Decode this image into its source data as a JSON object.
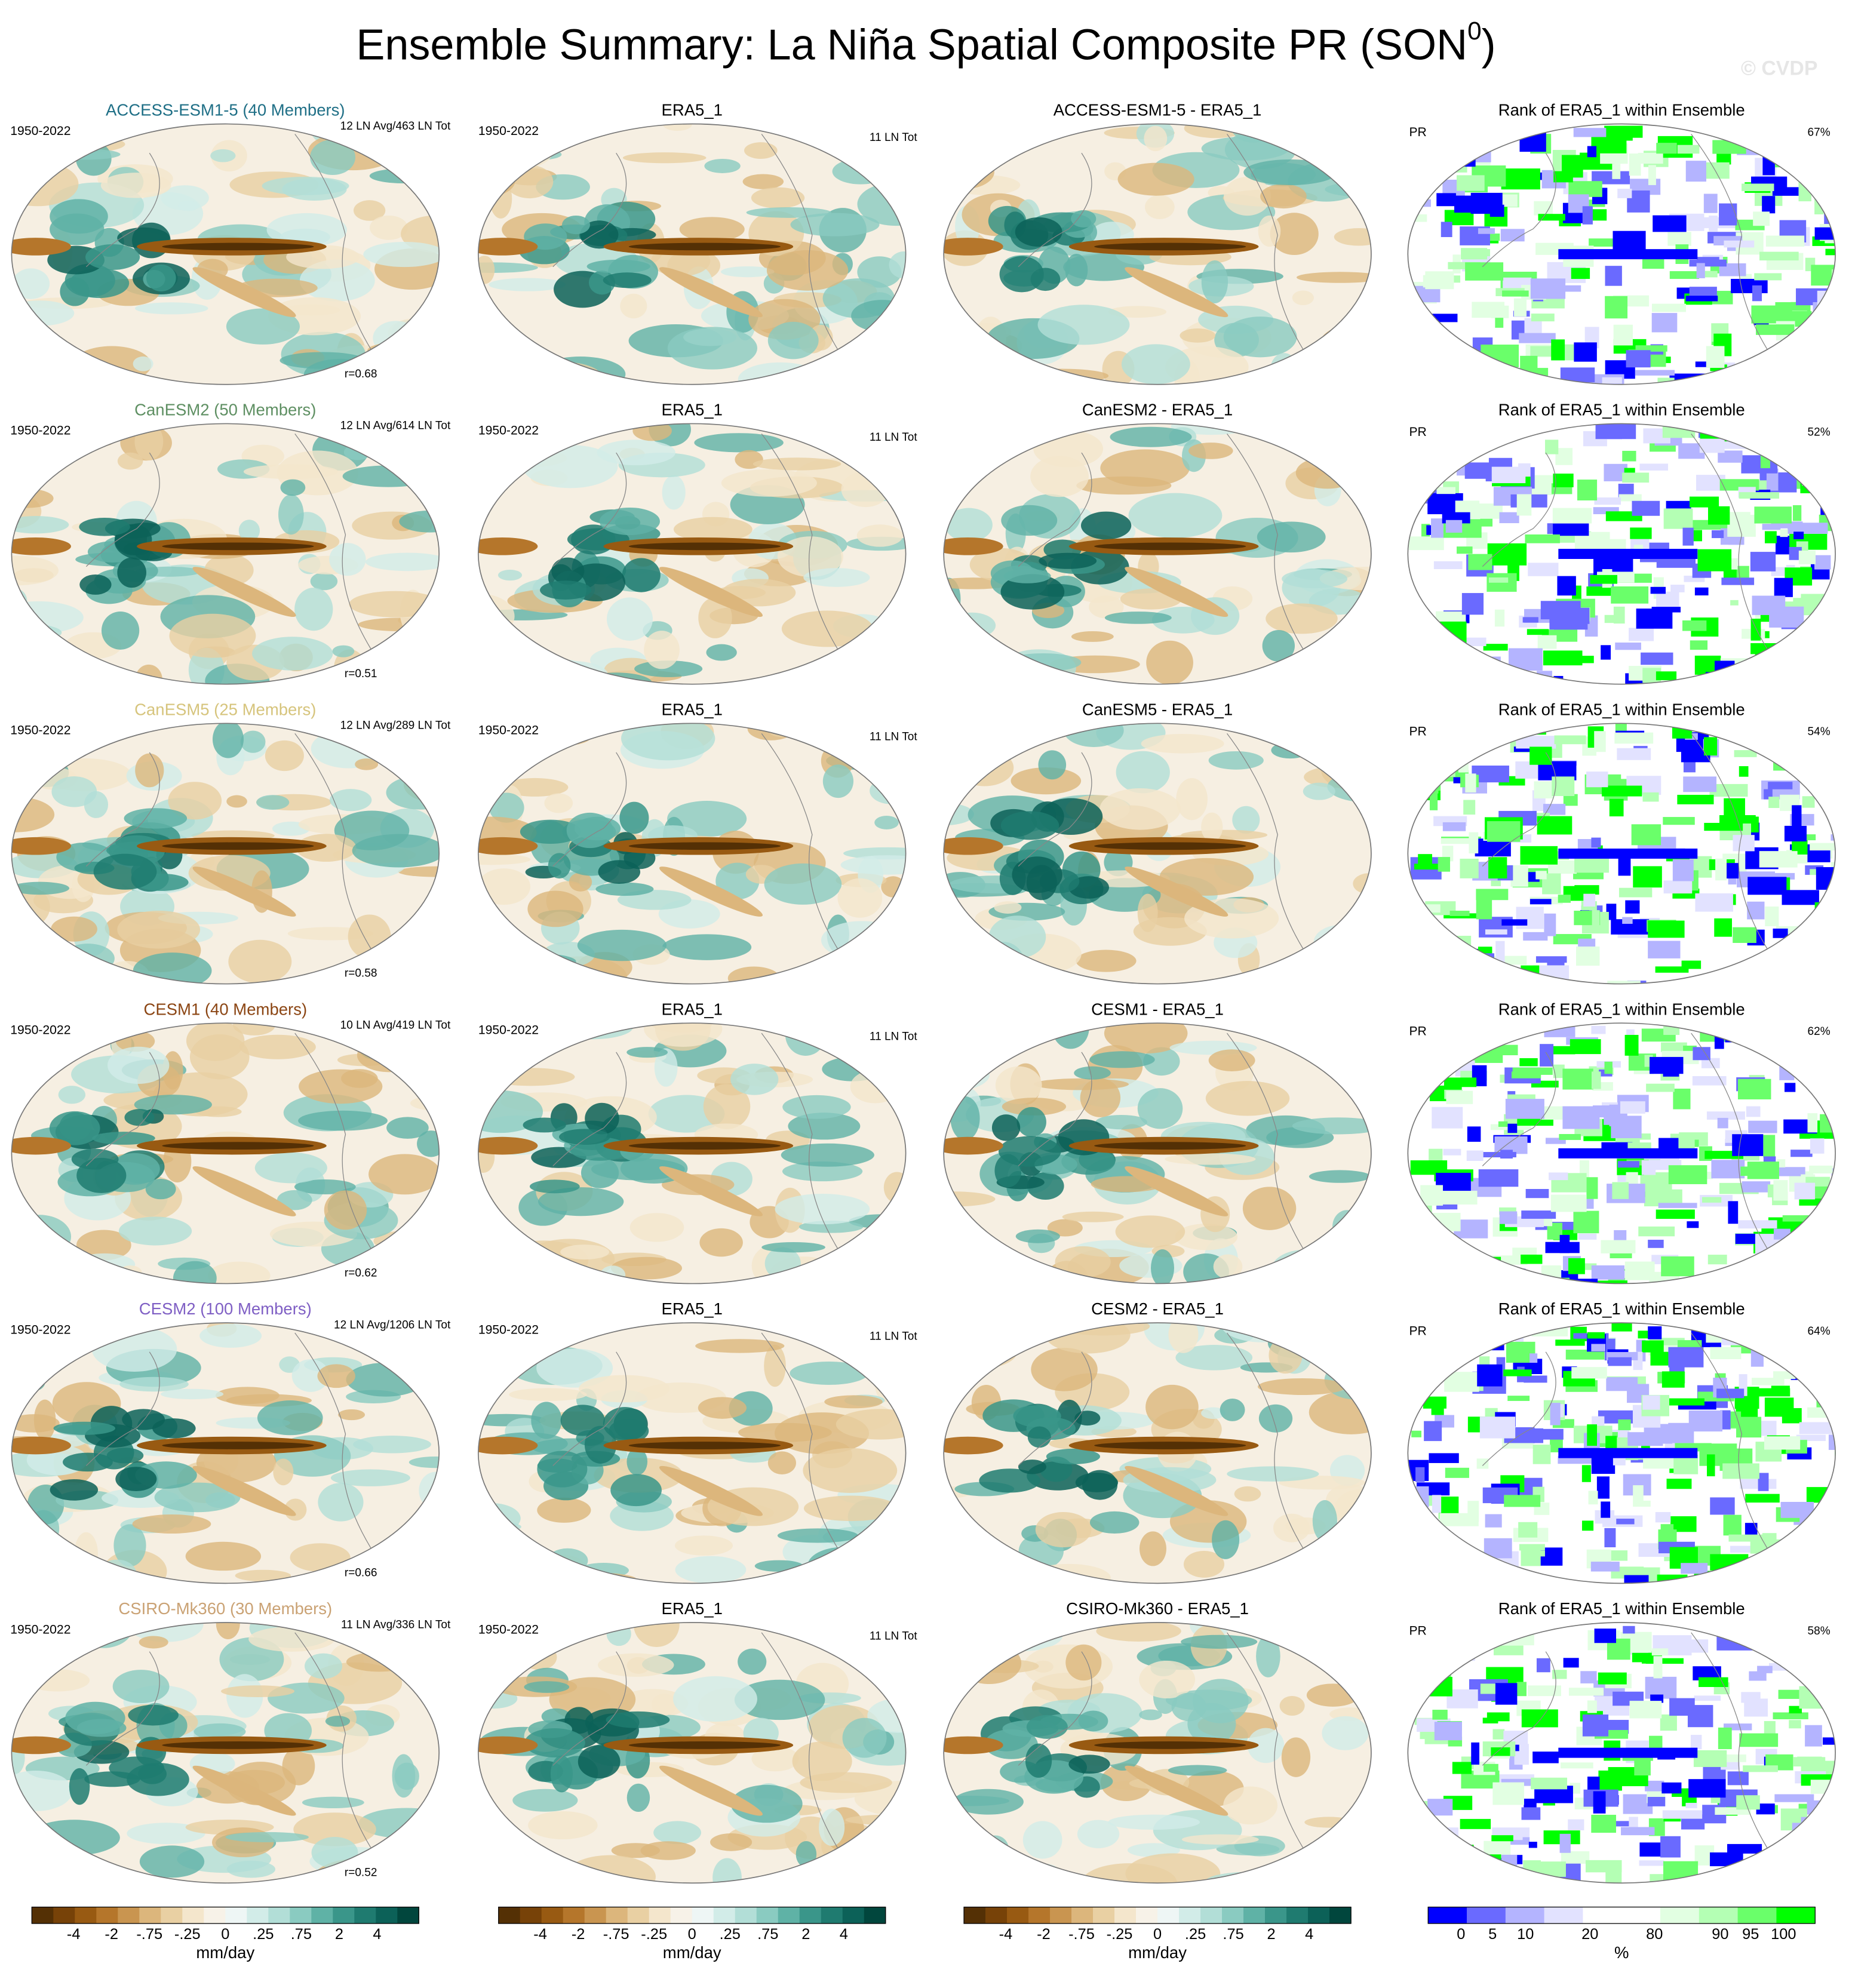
{
  "title": {
    "main": "Ensemble Summary: La Niña Spatial Composite PR (SON",
    "superscript": "0",
    "end": ")"
  },
  "watermark": "© CVDP",
  "rows": [
    {
      "model": {
        "title": "ACCESS-ESM1-5 (40 Members)",
        "color": "#1f6f86",
        "period": "1950-2022",
        "counts": "12 LN Avg/463 LN Tot",
        "correlation": "r=0.68"
      },
      "observation": {
        "title": "ERA5_1",
        "period": "1950-2022",
        "counts": "11 LN Tot"
      },
      "difference": {
        "title": "ACCESS-ESM1-5 - ERA5_1"
      },
      "rank": {
        "title": "Rank of ERA5_1 within Ensemble",
        "variable": "PR",
        "percent": "67%"
      }
    },
    {
      "model": {
        "title": "CanESM2 (50 Members)",
        "color": "#5e8f62",
        "period": "1950-2022",
        "counts": "12 LN Avg/614 LN Tot",
        "correlation": "r=0.51"
      },
      "observation": {
        "title": "ERA5_1",
        "period": "1950-2022",
        "counts": "11 LN Tot"
      },
      "difference": {
        "title": "CanESM2 - ERA5_1"
      },
      "rank": {
        "title": "Rank of ERA5_1 within Ensemble",
        "variable": "PR",
        "percent": "52%"
      }
    },
    {
      "model": {
        "title": "CanESM5 (25 Members)",
        "color": "#d6c47c",
        "period": "1950-2022",
        "counts": "12 LN Avg/289 LN Tot",
        "correlation": "r=0.58"
      },
      "observation": {
        "title": "ERA5_1",
        "period": "1950-2022",
        "counts": "11 LN Tot"
      },
      "difference": {
        "title": "CanESM5 - ERA5_1"
      },
      "rank": {
        "title": "Rank of ERA5_1 within Ensemble",
        "variable": "PR",
        "percent": "54%"
      }
    },
    {
      "model": {
        "title": "CESM1 (40 Members)",
        "color": "#8b4513",
        "period": "1950-2022",
        "counts": "10 LN Avg/419 LN Tot",
        "correlation": "r=0.62"
      },
      "observation": {
        "title": "ERA5_1",
        "period": "1950-2022",
        "counts": "11 LN Tot"
      },
      "difference": {
        "title": "CESM1 - ERA5_1"
      },
      "rank": {
        "title": "Rank of ERA5_1 within Ensemble",
        "variable": "PR",
        "percent": "62%"
      }
    },
    {
      "model": {
        "title": "CESM2 (100 Members)",
        "color": "#7f5fc4",
        "period": "1950-2022",
        "counts": "12 LN Avg/1206 LN Tot",
        "correlation": "r=0.66"
      },
      "observation": {
        "title": "ERA5_1",
        "period": "1950-2022",
        "counts": "11 LN Tot"
      },
      "difference": {
        "title": "CESM2 - ERA5_1"
      },
      "rank": {
        "title": "Rank of ERA5_1 within Ensemble",
        "variable": "PR",
        "percent": "64%"
      }
    },
    {
      "model": {
        "title": "CSIRO-Mk360 (30 Members)",
        "color": "#caa274",
        "period": "1950-2022",
        "counts": "11 LN Avg/336 LN Tot",
        "correlation": "r=0.52"
      },
      "observation": {
        "title": "ERA5_1",
        "period": "1950-2022",
        "counts": "11 LN Tot"
      },
      "difference": {
        "title": "CSIRO-Mk360 - ERA5_1"
      },
      "rank": {
        "title": "Rank of ERA5_1 within Ensemble",
        "variable": "PR",
        "percent": "58%"
      }
    }
  ],
  "colorbars": [
    {
      "labels": [
        "-4",
        "-2",
        "-.75",
        "-.25",
        "0",
        ".25",
        ".75",
        "2",
        "4"
      ],
      "units": "mm/day",
      "colors": [
        "#543005",
        "#774208",
        "#985a12",
        "#b5762b",
        "#c99550",
        "#dcb67c",
        "#e9d0a3",
        "#f4e6cc",
        "#f7f2e8",
        "#eef6f5",
        "#d2ece8",
        "#b2ded7",
        "#8acbc1",
        "#5fb2a6",
        "#3a968a",
        "#1f7b70",
        "#0c6158",
        "#01463d"
      ]
    },
    {
      "labels": [
        "-4",
        "-2",
        "-.75",
        "-.25",
        "0",
        ".25",
        ".75",
        "2",
        "4"
      ],
      "units": "mm/day",
      "colors": [
        "#543005",
        "#774208",
        "#985a12",
        "#b5762b",
        "#c99550",
        "#dcb67c",
        "#e9d0a3",
        "#f4e6cc",
        "#f7f2e8",
        "#eef6f5",
        "#d2ece8",
        "#b2ded7",
        "#8acbc1",
        "#5fb2a6",
        "#3a968a",
        "#1f7b70",
        "#0c6158",
        "#01463d"
      ]
    },
    {
      "labels": [
        "-4",
        "-2",
        "-.75",
        "-.25",
        "0",
        ".25",
        ".75",
        "2",
        "4"
      ],
      "units": "mm/day",
      "colors": [
        "#543005",
        "#774208",
        "#985a12",
        "#b5762b",
        "#c99550",
        "#dcb67c",
        "#e9d0a3",
        "#f4e6cc",
        "#f7f2e8",
        "#eef6f5",
        "#d2ece8",
        "#b2ded7",
        "#8acbc1",
        "#5fb2a6",
        "#3a968a",
        "#1f7b70",
        "#0c6158",
        "#01463d"
      ]
    },
    {
      "labels": [
        "0",
        "5",
        "10",
        "20",
        "80",
        "90",
        "95",
        "100"
      ],
      "units": "%",
      "colors": [
        "#0000ff",
        "#6a6aff",
        "#b4b4ff",
        "#e2e2ff",
        "#ffffff",
        "#ffffff",
        "#e2ffe2",
        "#b4ffb4",
        "#6aff6a",
        "#00ff00"
      ]
    }
  ]
}
